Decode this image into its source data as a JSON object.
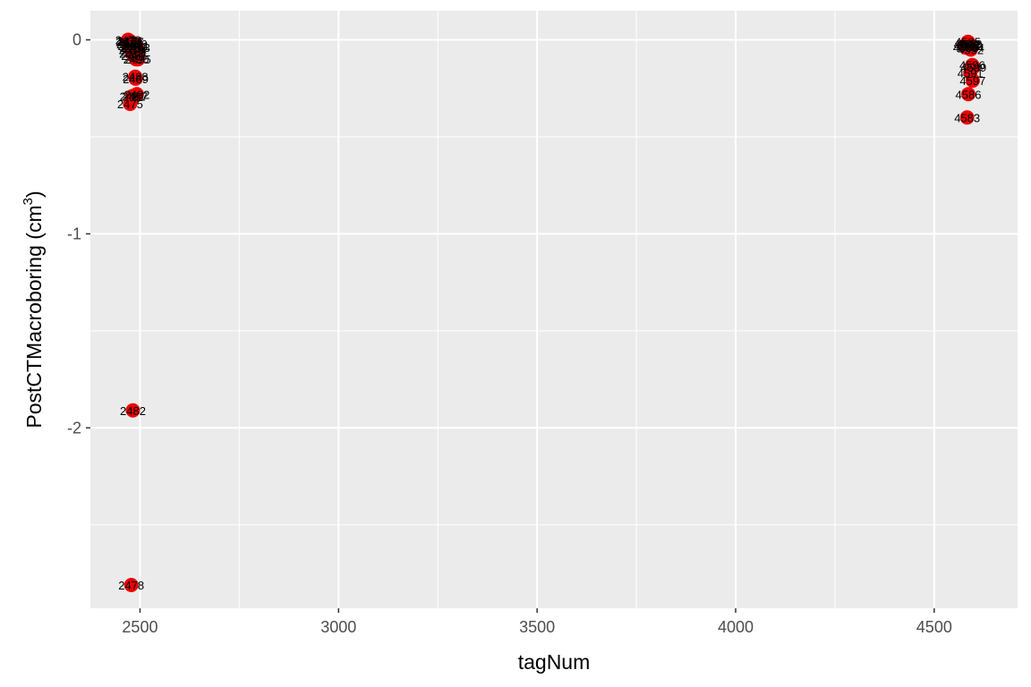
{
  "chart_data": {
    "type": "scatter",
    "title": "",
    "xlabel": "tagNum",
    "ylabel": "PostCTMacroboring (cm",
    "ylabel_superscript": "3",
    "ylabel_suffix": ")",
    "xlim": [
      2375,
      4710
    ],
    "ylim": [
      -2.93,
      0.15
    ],
    "x_major_ticks": [
      2500,
      3000,
      3500,
      4000,
      4500
    ],
    "x_minor_ticks": [
      2750,
      3250,
      3750,
      4250
    ],
    "y_major_ticks": [
      0,
      -1,
      -2
    ],
    "y_minor_ticks": [
      -0.5,
      -1.5,
      -2.5
    ],
    "x_tick_labels": [
      "2500",
      "3000",
      "3500",
      "4000",
      "4500"
    ],
    "y_tick_labels": [
      "0",
      "-1",
      "-2"
    ],
    "grid": true,
    "point_color": "#ee0000",
    "panel_color": "#ebebeb",
    "grid_color": "#ffffff",
    "points": [
      {
        "x": 2470,
        "y": 0.0,
        "label": "2470"
      },
      {
        "x": 2471,
        "y": -0.01,
        "label": "2471"
      },
      {
        "x": 2473,
        "y": -0.02,
        "label": "2473"
      },
      {
        "x": 2474,
        "y": -0.005,
        "label": "2474"
      },
      {
        "x": 2476,
        "y": -0.03,
        "label": "2476"
      },
      {
        "x": 2477,
        "y": -0.01,
        "label": "2477"
      },
      {
        "x": 2479,
        "y": -0.05,
        "label": "2479"
      },
      {
        "x": 2480,
        "y": -0.07,
        "label": "2480"
      },
      {
        "x": 2483,
        "y": -0.04,
        "label": "2483"
      },
      {
        "x": 2484,
        "y": -0.06,
        "label": "2484"
      },
      {
        "x": 2485,
        "y": -0.08,
        "label": "2485"
      },
      {
        "x": 2486,
        "y": -0.02,
        "label": "2486"
      },
      {
        "x": 2490,
        "y": -0.1,
        "label": "2490"
      },
      {
        "x": 2491,
        "y": -0.03,
        "label": "2491"
      },
      {
        "x": 2493,
        "y": -0.04,
        "label": "2493"
      },
      {
        "x": 2495,
        "y": -0.1,
        "label": "2495"
      },
      {
        "x": 2489,
        "y": -0.2,
        "label": "2489"
      },
      {
        "x": 2488,
        "y": -0.19,
        "label": "2488"
      },
      {
        "x": 2481,
        "y": -0.29,
        "label": "2481"
      },
      {
        "x": 2487,
        "y": -0.29,
        "label": "2487"
      },
      {
        "x": 2492,
        "y": -0.28,
        "label": "2492"
      },
      {
        "x": 2475,
        "y": -0.33,
        "label": "2475"
      },
      {
        "x": 2482,
        "y": -1.91,
        "label": "2482"
      },
      {
        "x": 2478,
        "y": -2.81,
        "label": "2478"
      },
      {
        "x": 4580,
        "y": -0.04,
        "label": "4580"
      },
      {
        "x": 4582,
        "y": -0.02,
        "label": "4582"
      },
      {
        "x": 4583,
        "y": -0.03,
        "label": "4583"
      },
      {
        "x": 4585,
        "y": -0.01,
        "label": "4585"
      },
      {
        "x": 4588,
        "y": -0.02,
        "label": "4588"
      },
      {
        "x": 4590,
        "y": -0.03,
        "label": "4590"
      },
      {
        "x": 4592,
        "y": -0.05,
        "label": "4592"
      },
      {
        "x": 4594,
        "y": -0.04,
        "label": "4594"
      },
      {
        "x": 4596,
        "y": -0.13,
        "label": "4596"
      },
      {
        "x": 4599,
        "y": -0.14,
        "label": "4599"
      },
      {
        "x": 4591,
        "y": -0.17,
        "label": "4591"
      },
      {
        "x": 4597,
        "y": -0.21,
        "label": "4597"
      },
      {
        "x": 4586,
        "y": -0.28,
        "label": "4586"
      },
      {
        "x": 4583,
        "y": -0.4,
        "label": "4583"
      }
    ]
  }
}
